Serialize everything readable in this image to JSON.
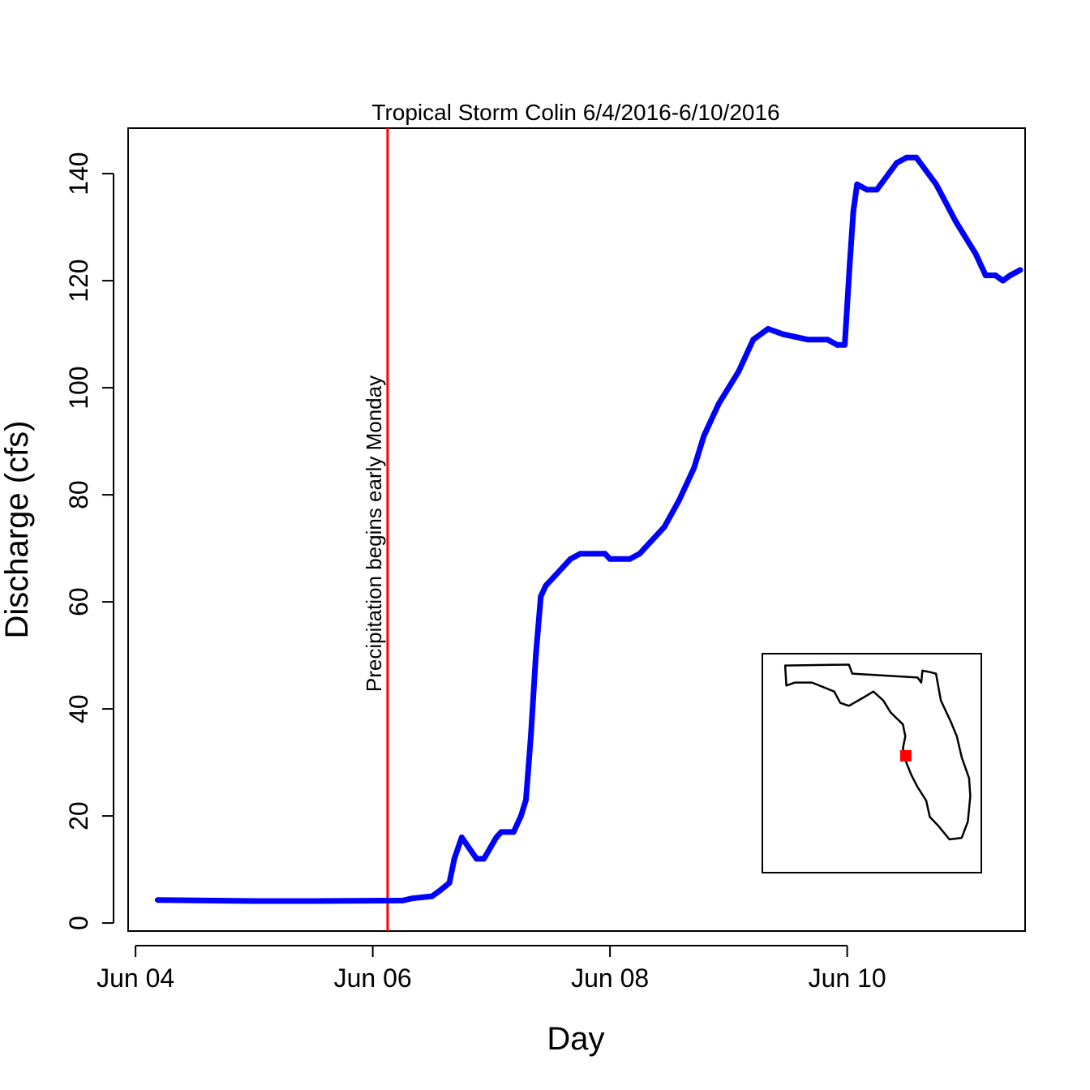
{
  "chart_data": {
    "type": "line",
    "title": "Tropical Storm Colin 6/4/2016-6/10/2016",
    "xlabel": "Day",
    "ylabel": "Discharge (cfs)",
    "x_axis_type": "date",
    "xlim": [
      "2016-06-03 22:30",
      "2016-06-11 12:00"
    ],
    "ylim": [
      -1.5,
      148.5
    ],
    "x_ticks": [
      {
        "value": "2016-06-04 00:00",
        "label": "Jun 04"
      },
      {
        "value": "2016-06-06 00:00",
        "label": "Jun 06"
      },
      {
        "value": "2016-06-08 00:00",
        "label": "Jun 08"
      },
      {
        "value": "2016-06-10 00:00",
        "label": "Jun 10"
      }
    ],
    "y_ticks": [
      {
        "value": 0,
        "label": "0"
      },
      {
        "value": 20,
        "label": "20"
      },
      {
        "value": 40,
        "label": "40"
      },
      {
        "value": 60,
        "label": "60"
      },
      {
        "value": 80,
        "label": "80"
      },
      {
        "value": 100,
        "label": "100"
      },
      {
        "value": 120,
        "label": "120"
      },
      {
        "value": 140,
        "label": "140"
      }
    ],
    "grid": false,
    "series": [
      {
        "color": "#0000ff",
        "points": [
          [
            "2016-06-04 04:30",
            4.3
          ],
          [
            "2016-06-05 00:00",
            4.1
          ],
          [
            "2016-06-05 12:00",
            4.1
          ],
          [
            "2016-06-06 06:00",
            4.2
          ],
          [
            "2016-06-06 08:00",
            4.6
          ],
          [
            "2016-06-06 12:00",
            5.0
          ],
          [
            "2016-06-06 13:30",
            6.0
          ],
          [
            "2016-06-06 15:30",
            7.5
          ],
          [
            "2016-06-06 16:30",
            12.0
          ],
          [
            "2016-06-06 18:00",
            16.0
          ],
          [
            "2016-06-06 21:00",
            12.0
          ],
          [
            "2016-06-06 22:30",
            12.0
          ],
          [
            "2016-06-07 01:00",
            16.0
          ],
          [
            "2016-06-07 02:00",
            17.0
          ],
          [
            "2016-06-07 04:30",
            17.0
          ],
          [
            "2016-06-07 06:00",
            20.0
          ],
          [
            "2016-06-07 07:00",
            23.0
          ],
          [
            "2016-06-07 08:00",
            35.0
          ],
          [
            "2016-06-07 09:00",
            50.0
          ],
          [
            "2016-06-07 10:00",
            61.0
          ],
          [
            "2016-06-07 11:00",
            63.0
          ],
          [
            "2016-06-07 13:00",
            65.0
          ],
          [
            "2016-06-07 16:00",
            68.0
          ],
          [
            "2016-06-07 18:00",
            69.0
          ],
          [
            "2016-06-07 23:00",
            69.0
          ],
          [
            "2016-06-08 00:00",
            68.0
          ],
          [
            "2016-06-08 04:00",
            68.0
          ],
          [
            "2016-06-08 06:00",
            69.0
          ],
          [
            "2016-06-08 08:00",
            71.0
          ],
          [
            "2016-06-08 11:00",
            74.0
          ],
          [
            "2016-06-08 14:00",
            79.0
          ],
          [
            "2016-06-08 17:00",
            85.0
          ],
          [
            "2016-06-08 19:00",
            91.0
          ],
          [
            "2016-06-08 22:00",
            97.0
          ],
          [
            "2016-06-09 02:00",
            103.0
          ],
          [
            "2016-06-09 05:00",
            109.0
          ],
          [
            "2016-06-09 08:00",
            111.0
          ],
          [
            "2016-06-09 11:00",
            110.0
          ],
          [
            "2016-06-09 16:00",
            109.0
          ],
          [
            "2016-06-09 20:00",
            109.0
          ],
          [
            "2016-06-09 22:00",
            108.0
          ],
          [
            "2016-06-09 23:30",
            108.0
          ],
          [
            "2016-06-10 00:30",
            123.0
          ],
          [
            "2016-06-10 01:15",
            133.0
          ],
          [
            "2016-06-10 02:00",
            138.0
          ],
          [
            "2016-06-10 04:00",
            137.0
          ],
          [
            "2016-06-10 06:00",
            137.0
          ],
          [
            "2016-06-10 10:00",
            142.0
          ],
          [
            "2016-06-10 12:00",
            143.0
          ],
          [
            "2016-06-10 14:00",
            143.0
          ],
          [
            "2016-06-10 18:00",
            138.0
          ],
          [
            "2016-06-10 22:00",
            131.0
          ],
          [
            "2016-06-11 02:00",
            125.0
          ],
          [
            "2016-06-11 04:00",
            121.0
          ],
          [
            "2016-06-11 06:00",
            121.0
          ],
          [
            "2016-06-11 07:30",
            120.0
          ],
          [
            "2016-06-11 09:00",
            121.0
          ],
          [
            "2016-06-11 11:00",
            122.0
          ]
        ]
      }
    ],
    "reference_line": {
      "x": "2016-06-06 03:00",
      "color": "#ff0000",
      "label": "Precipitation begins early Monday"
    },
    "inset_map": {
      "region": "Florida",
      "marker_color": "#ff0000",
      "marker_lon": -82.68,
      "marker_lat": 27.95,
      "outline": [
        [
          -87.6,
          30.97
        ],
        [
          -87.55,
          30.3
        ],
        [
          -87.2,
          30.4
        ],
        [
          -86.5,
          30.4
        ],
        [
          -85.6,
          30.1
        ],
        [
          -85.35,
          29.72
        ],
        [
          -85.0,
          29.62
        ],
        [
          -84.4,
          29.9
        ],
        [
          -84.0,
          30.1
        ],
        [
          -83.6,
          29.8
        ],
        [
          -83.3,
          29.4
        ],
        [
          -82.8,
          29.0
        ],
        [
          -82.7,
          28.6
        ],
        [
          -82.8,
          28.2
        ],
        [
          -82.65,
          27.7
        ],
        [
          -82.45,
          27.3
        ],
        [
          -82.2,
          26.9
        ],
        [
          -81.85,
          26.45
        ],
        [
          -81.7,
          25.9
        ],
        [
          -81.35,
          25.6
        ],
        [
          -80.9,
          25.15
        ],
        [
          -80.4,
          25.2
        ],
        [
          -80.15,
          25.75
        ],
        [
          -80.05,
          26.6
        ],
        [
          -80.1,
          27.2
        ],
        [
          -80.4,
          27.9
        ],
        [
          -80.6,
          28.6
        ],
        [
          -80.85,
          29.1
        ],
        [
          -81.25,
          29.8
        ],
        [
          -81.45,
          30.7
        ],
        [
          -81.7,
          30.75
        ],
        [
          -82.0,
          30.8
        ],
        [
          -82.05,
          30.4
        ],
        [
          -82.2,
          30.57
        ],
        [
          -84.86,
          30.7
        ],
        [
          -85.0,
          31.0
        ],
        [
          -87.6,
          30.97
        ]
      ]
    }
  }
}
